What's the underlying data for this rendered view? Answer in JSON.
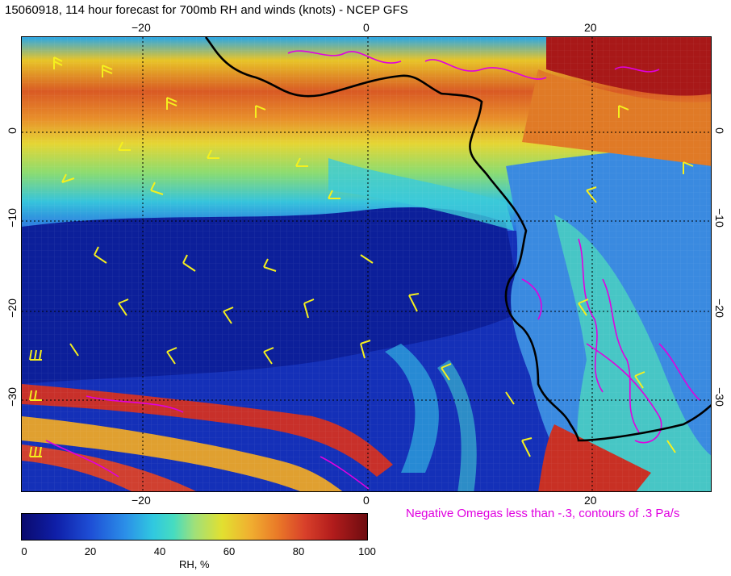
{
  "title": "15060918, 114 hour forecast for 700mb RH and winds (knots) - NCEP GFS",
  "longitude_ticks": [
    "−20",
    "0",
    "20"
  ],
  "latitude_ticks": [
    "0",
    "−10",
    "−20",
    "−30"
  ],
  "omega_note": "Negative Omegas less than -.3, contours of .3 Pa/s",
  "colorbar": {
    "ticks": [
      "0",
      "20",
      "40",
      "60",
      "80",
      "100"
    ],
    "label": "RH, %"
  },
  "colors": {
    "omega_contour": "#e000e0",
    "wind_barb": "#f5f01e",
    "coastline": "#000000"
  }
}
